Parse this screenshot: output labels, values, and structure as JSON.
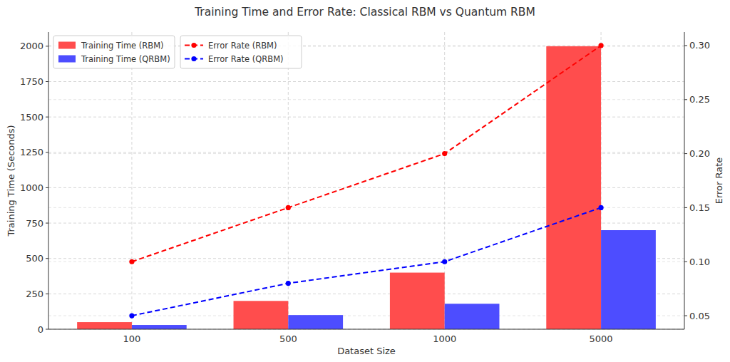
{
  "chart_data": {
    "type": "bar",
    "title": "Training Time and Error Rate: Classical RBM vs Quantum RBM",
    "x_label": "Dataset Size",
    "y_label": "Training Time (Seconds)",
    "y2_label": "Error Rate",
    "categories": [
      "100",
      "500",
      "1000",
      "5000"
    ],
    "series": [
      {
        "name": "Training Time (RBM)",
        "type": "bar",
        "color": "#ff4d4d",
        "values": [
          50,
          200,
          400,
          2000
        ]
      },
      {
        "name": "Training Time (QRBM)",
        "type": "bar",
        "color": "#4d4dff",
        "values": [
          30,
          100,
          180,
          700
        ]
      },
      {
        "name": "Error Rate (RBM)",
        "type": "line",
        "axis": "y2",
        "color": "#ff0000",
        "marker": "circle",
        "line_style": "dashed",
        "values": [
          0.1,
          0.15,
          0.2,
          0.3
        ]
      },
      {
        "name": "Error Rate (QRBM)",
        "type": "line",
        "axis": "y2",
        "color": "#0000ff",
        "marker": "circle",
        "line_style": "dashed",
        "values": [
          0.05,
          0.08,
          0.1,
          0.15
        ]
      }
    ],
    "ylim": [
      0,
      2100
    ],
    "yticks": [
      0,
      250,
      500,
      750,
      1000,
      1250,
      1500,
      1750,
      2000
    ],
    "y2lim": [
      0.0375,
      0.3125
    ],
    "y2ticks": [
      0.05,
      {
        "value": 0.1,
        "label": "0.10"
      },
      0.15,
      {
        "value": 0.2,
        "label": "0.20"
      },
      0.25,
      {
        "value": 0.3,
        "label": "0.30"
      }
    ],
    "grid": true,
    "legend": "upper left"
  }
}
